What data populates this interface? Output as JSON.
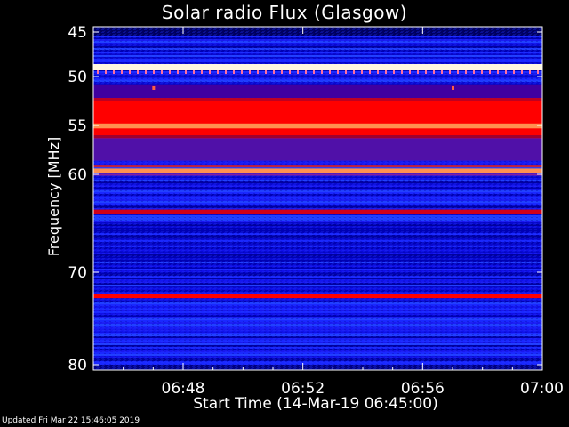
{
  "chart_data": {
    "type": "heatmap",
    "title": "Solar radio Flux (Glasgow)",
    "xlabel": "Start Time (14-Mar-19 06:45:00)",
    "ylabel": "Frequency [MHz]",
    "x_ticks": [
      "06:48",
      "06:52",
      "06:56",
      "07:00"
    ],
    "y_ticks": [
      "45",
      "50",
      "55",
      "60",
      "70",
      "80"
    ],
    "x_tick_minutes": [
      48,
      52,
      56,
      60
    ],
    "y_tick_mhz": [
      45,
      50,
      55,
      60,
      70,
      80
    ],
    "xlim_minutes": [
      45,
      60
    ],
    "ylim_mhz": [
      44,
      80
    ],
    "y_scale": "nonlinear (compressed at high frequency)",
    "colormap": [
      "#000020",
      "#0000c8",
      "#2030ff",
      "#ff0000",
      "#ffa060",
      "#ffffff"
    ],
    "bands": [
      {
        "mhz_from": 48.6,
        "mhz_to": 49.3,
        "level": "white"
      },
      {
        "mhz_from": 52.2,
        "mhz_to": 56.3,
        "level": "red"
      },
      {
        "mhz_from": 54.8,
        "mhz_to": 55.3,
        "level": "orange"
      },
      {
        "mhz_from": 59.4,
        "mhz_to": 59.9,
        "level": "orange"
      },
      {
        "mhz_from": 63.6,
        "mhz_to": 64.0,
        "level": "dark-red"
      },
      {
        "mhz_from": 72.4,
        "mhz_to": 72.8,
        "level": "red"
      }
    ]
  },
  "footer": {
    "updated": "Updated Fri Mar 22 15:46:05 2019"
  }
}
